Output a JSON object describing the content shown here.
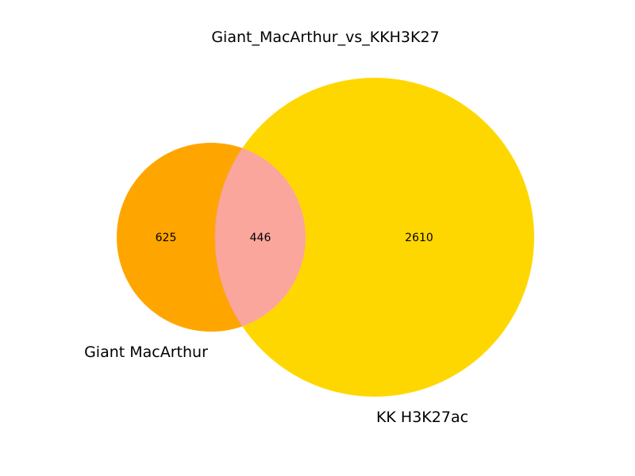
{
  "title": "Giant_MacArthur_vs_KKH3K27",
  "sets": [
    {
      "name": "Giant MacArthur",
      "color": "#ffa500"
    },
    {
      "name": "KK H3K27ac",
      "color": "#ffd700"
    }
  ],
  "intersection_color": "#fba69d",
  "counts": {
    "only_a": "625",
    "both": "446",
    "only_b": "2610"
  }
}
